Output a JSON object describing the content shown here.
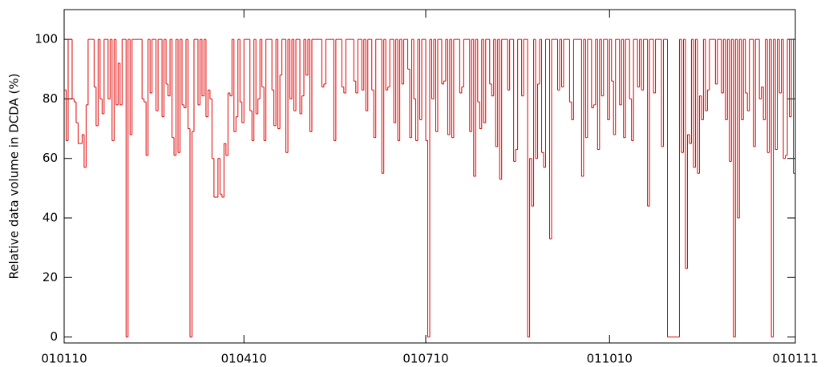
{
  "chart_data": {
    "type": "step",
    "y_label": "Relative data volume in DCDA (%)",
    "x": [
      0,
      1,
      2,
      3,
      4,
      5,
      6,
      7,
      8,
      9,
      10,
      11,
      12,
      13,
      14,
      15,
      16,
      17,
      18,
      19,
      20,
      21,
      22,
      23,
      24,
      25,
      26,
      27,
      28,
      29,
      30,
      31,
      32,
      33,
      34,
      35,
      36,
      37,
      38,
      39,
      40,
      41,
      42,
      43,
      44,
      45,
      46,
      47,
      48,
      49,
      50,
      51,
      52,
      53,
      54,
      55,
      56,
      57,
      58,
      59,
      60,
      61,
      62,
      63,
      64,
      65,
      66,
      67,
      68,
      69,
      70,
      71,
      72,
      73,
      74,
      75,
      76,
      77,
      78,
      79,
      80,
      81,
      82,
      83,
      84,
      85,
      86,
      87,
      88,
      89,
      90,
      91,
      92,
      93,
      94,
      95,
      96,
      97,
      98,
      99,
      100,
      101,
      102,
      103,
      104,
      105,
      106,
      107,
      108,
      109,
      110,
      111,
      112,
      113,
      114,
      115,
      116,
      117,
      118,
      119,
      120,
      121,
      122,
      123,
      124,
      125,
      126,
      127,
      128,
      129,
      130,
      131,
      132,
      133,
      134,
      135,
      136,
      137,
      138,
      139,
      140,
      141,
      142,
      143,
      144,
      145,
      146,
      147,
      148,
      149,
      150,
      151,
      152,
      153,
      154,
      155,
      156,
      157,
      158,
      159,
      160,
      161,
      162,
      163,
      164,
      165,
      166,
      167,
      168,
      169,
      170,
      171,
      172,
      173,
      174,
      175,
      176,
      177,
      178,
      179,
      180,
      181,
      182,
      183,
      184,
      185,
      186,
      187,
      188,
      189,
      190,
      191,
      192,
      193,
      194,
      195,
      196,
      197,
      198,
      199,
      200,
      201,
      202,
      203,
      204,
      205,
      206,
      207,
      208,
      209,
      210,
      211,
      212,
      213,
      214,
      215,
      216,
      217,
      218,
      219,
      220,
      221,
      222,
      223,
      224,
      225,
      226,
      227,
      228,
      229,
      230,
      231,
      232,
      233,
      234,
      235,
      236,
      237,
      238,
      239,
      240,
      241,
      242,
      243,
      244,
      245,
      246,
      247,
      248,
      249,
      250,
      251,
      252,
      253,
      254,
      255,
      256,
      257,
      258,
      259,
      260,
      261,
      262,
      263,
      264,
      265,
      266,
      267,
      268,
      269,
      270,
      271,
      272,
      273,
      274,
      275,
      276,
      277,
      278,
      279,
      280,
      281,
      282,
      283,
      284,
      285,
      286,
      287,
      288,
      289,
      290,
      291,
      292,
      293,
      294,
      295,
      296,
      297,
      298,
      299,
      300,
      301,
      302,
      303,
      304,
      305,
      306,
      307,
      308,
      309,
      310,
      311,
      312,
      313,
      314,
      315,
      316,
      317,
      318,
      319,
      320,
      321,
      322,
      323,
      324,
      325,
      326,
      327,
      328,
      329,
      330,
      331,
      332,
      333,
      334,
      335,
      336,
      337,
      338,
      339,
      340,
      341,
      342,
      343,
      344,
      345,
      346,
      347,
      348,
      349,
      350,
      351,
      352,
      353,
      354,
      355,
      356,
      357,
      358,
      359,
      360,
      361,
      362,
      363,
      364,
      365
    ],
    "values": [
      83,
      66,
      100,
      100,
      80,
      79,
      72,
      65,
      65,
      68,
      57,
      78,
      100,
      100,
      100,
      84,
      71,
      100,
      80,
      75,
      100,
      100,
      80,
      100,
      66,
      100,
      78,
      92,
      78,
      100,
      100,
      0,
      100,
      68,
      100,
      100,
      100,
      100,
      100,
      80,
      79,
      61,
      100,
      82,
      100,
      100,
      76,
      100,
      100,
      74,
      100,
      85,
      81,
      100,
      67,
      61,
      100,
      62,
      100,
      78,
      77,
      100,
      70,
      0,
      69,
      100,
      100,
      78,
      100,
      81,
      100,
      74,
      83,
      80,
      60,
      47,
      47,
      60,
      48,
      47,
      65,
      61,
      82,
      81,
      100,
      69,
      74,
      100,
      79,
      72,
      100,
      100,
      100,
      76,
      66,
      100,
      75,
      80,
      100,
      84,
      66,
      100,
      100,
      100,
      83,
      71,
      100,
      70,
      88,
      100,
      100,
      62,
      100,
      80,
      100,
      76,
      100,
      100,
      75,
      81,
      100,
      88,
      100,
      69,
      100,
      100,
      100,
      100,
      100,
      84,
      85,
      100,
      100,
      100,
      100,
      66,
      100,
      100,
      100,
      84,
      82,
      100,
      100,
      100,
      100,
      86,
      82,
      100,
      100,
      83,
      100,
      76,
      100,
      100,
      83,
      67,
      100,
      100,
      100,
      55,
      100,
      83,
      84,
      100,
      100,
      72,
      100,
      66,
      100,
      85,
      100,
      100,
      90,
      67,
      100,
      80,
      66,
      100,
      73,
      100,
      100,
      66,
      0,
      100,
      80,
      100,
      69,
      100,
      100,
      85,
      86,
      100,
      68,
      100,
      67,
      100,
      100,
      100,
      82,
      84,
      100,
      100,
      100,
      69,
      100,
      54,
      100,
      79,
      70,
      100,
      72,
      100,
      100,
      85,
      81,
      100,
      64,
      100,
      53,
      100,
      100,
      100,
      83,
      100,
      100,
      59,
      63,
      100,
      100,
      81,
      100,
      100,
      0,
      60,
      44,
      100,
      60,
      85,
      100,
      62,
      57,
      100,
      100,
      33,
      100,
      100,
      100,
      83,
      100,
      84,
      100,
      100,
      100,
      79,
      73,
      100,
      100,
      100,
      100,
      54,
      100,
      67,
      100,
      100,
      77,
      78,
      100,
      63,
      100,
      81,
      100,
      100,
      73,
      100,
      86,
      68,
      100,
      100,
      78,
      100,
      67,
      100,
      100,
      80,
      66,
      100,
      100,
      84,
      100,
      83,
      100,
      100,
      44,
      100,
      100,
      82,
      100,
      100,
      100,
      64,
      100,
      100,
      0,
      0,
      0,
      0,
      0,
      0,
      100,
      62,
      100,
      23,
      68,
      65,
      100,
      57,
      100,
      55,
      81,
      73,
      100,
      76,
      83,
      100,
      100,
      100,
      85,
      100,
      100,
      82,
      100,
      73,
      100,
      59,
      100,
      0,
      100,
      40,
      100,
      73,
      100,
      82,
      76,
      100,
      100,
      64,
      100,
      100,
      80,
      84,
      73,
      100,
      62,
      100,
      0,
      100,
      63,
      100,
      82,
      100,
      60,
      61,
      100,
      74,
      100,
      55
    ],
    "color": "#e00000",
    "xlim": [
      0,
      366
    ],
    "xticks": [
      {
        "value": 0,
        "label": "010110"
      },
      {
        "value": 90,
        "label": "010410"
      },
      {
        "value": 181,
        "label": "010710"
      },
      {
        "value": 273,
        "label": "011010"
      },
      {
        "value": 366,
        "label": "010111"
      }
    ],
    "ylim": [
      -2,
      110
    ],
    "yticks": [
      0,
      20,
      40,
      60,
      80,
      100
    ]
  }
}
